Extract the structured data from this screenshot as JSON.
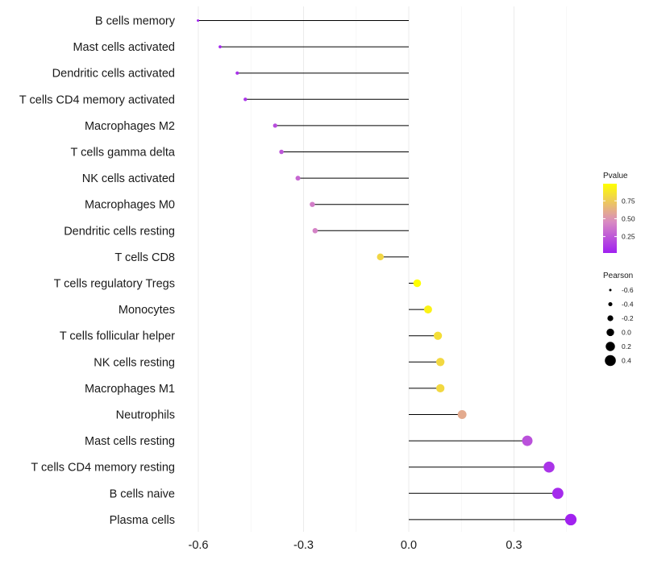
{
  "chart_data": {
    "type": "lollipop",
    "title": "",
    "xlabel": "",
    "ylabel": "",
    "xlim": [
      -0.6,
      0.47
    ],
    "x_ticks": [
      "-0.6",
      "-0.3",
      "0.0",
      "0.3"
    ],
    "x_tick_values": [
      -0.6,
      -0.3,
      0.0,
      0.3
    ],
    "categories": [
      "B cells memory",
      "Mast cells activated",
      "Dendritic cells activated",
      "T cells CD4 memory activated",
      "Macrophages M2",
      "T cells gamma delta",
      "NK cells activated",
      "Macrophages M0",
      "Dendritic cells resting",
      "T cells CD8",
      "T cells regulatory  Tregs ",
      "Monocytes",
      "T cells follicular helper",
      "NK cells resting",
      "Macrophages M1",
      "Neutrophils",
      "Mast cells resting",
      "T cells CD4 memory resting",
      "B cells naive",
      "Plasma cells"
    ],
    "pearson": [
      -0.601,
      -0.538,
      -0.489,
      -0.466,
      -0.381,
      -0.363,
      -0.316,
      -0.275,
      -0.267,
      -0.081,
      0.024,
      0.055,
      0.083,
      0.09,
      0.09,
      0.152,
      0.338,
      0.4,
      0.425,
      0.462
    ],
    "pvalue": [
      0.02,
      0.04,
      0.08,
      0.1,
      0.2,
      0.24,
      0.31,
      0.4,
      0.42,
      0.8,
      1.0,
      0.93,
      0.84,
      0.81,
      0.81,
      0.6,
      0.22,
      0.1,
      0.06,
      0.03
    ],
    "legend_color": {
      "title": "Pvalue",
      "ticks": [
        "0.75",
        "0.50",
        "0.25"
      ],
      "tick_values": [
        0.75,
        0.5,
        0.25
      ],
      "range": [
        0.02,
        0.99
      ],
      "low_color": "#a020f0",
      "mid_color": "#d98bc2",
      "high_color": "#ffff00"
    },
    "legend_size": {
      "title": "Pearson",
      "labels": [
        "-0.6",
        "-0.4",
        "-0.2",
        "0.0",
        "0.2",
        "0.4"
      ],
      "values": [
        -0.6,
        -0.4,
        -0.2,
        0.0,
        0.2,
        0.4
      ]
    },
    "legend_position": "right",
    "grid": true,
    "segment_color": "#000000",
    "grid_color": "#ebebeb"
  }
}
